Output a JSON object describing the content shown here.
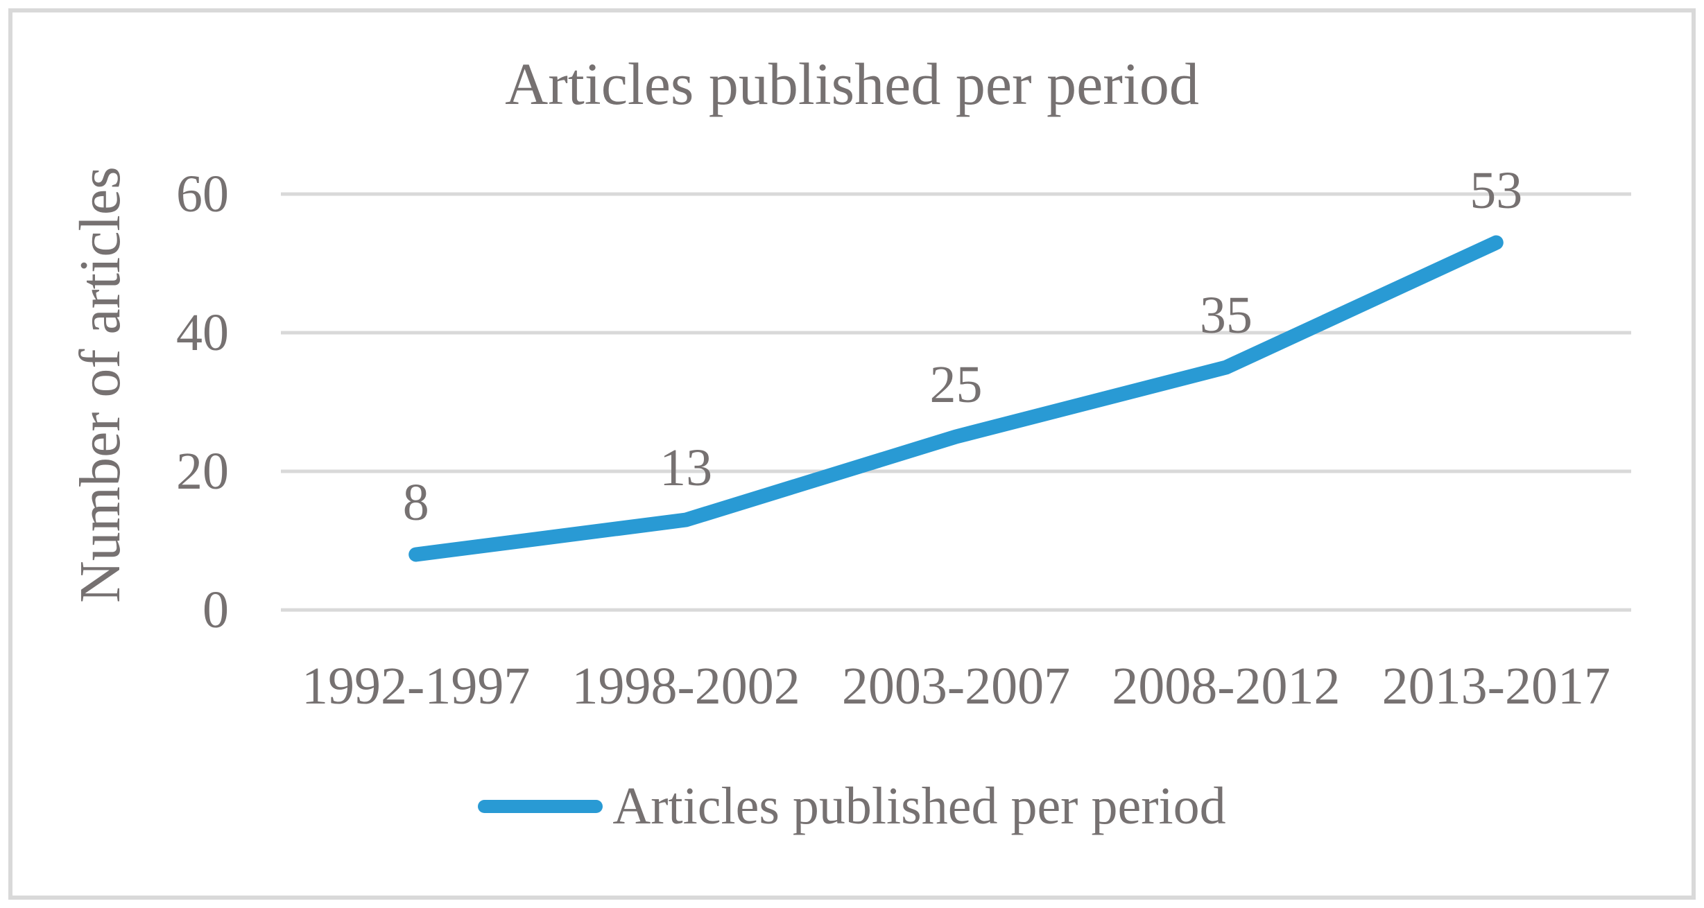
{
  "figure": {
    "title": "Articles published per period",
    "y_axis_title": "Number of articles",
    "legend": {
      "label": "Articles published per period"
    }
  },
  "chart_data": {
    "type": "line",
    "title": "Articles published per period",
    "categories": [
      "1992-1997",
      "1998-2002",
      "2003-2007",
      "2008-2012",
      "2013-2017"
    ],
    "series": [
      {
        "name": "Articles published per period",
        "values": [
          8,
          13,
          25,
          35,
          53
        ]
      }
    ],
    "data_labels": [
      8,
      13,
      25,
      35,
      53
    ],
    "xlabel": "",
    "ylabel": "Number of articles",
    "ylim": [
      0,
      60
    ],
    "yticks": [
      0,
      20,
      40,
      60
    ],
    "grid": true,
    "legend_position": "bottom",
    "colors": {
      "line": "#299AD4",
      "text": "#767171",
      "gridline": "#D9D9D9",
      "frame_border": "#D9D9D9",
      "background": "#FFFFFF"
    }
  }
}
